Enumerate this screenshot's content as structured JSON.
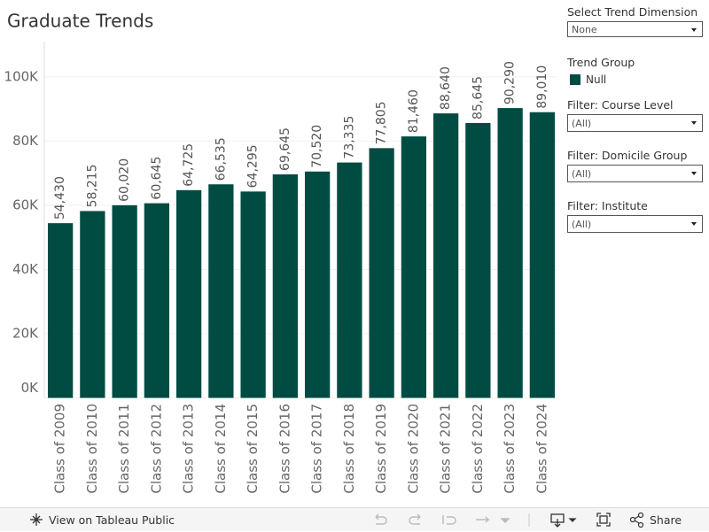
{
  "chart_data": {
    "type": "bar",
    "title": "Graduate Trends",
    "categories": [
      "Class of 2009",
      "Class of 2010",
      "Class of 2011",
      "Class of 2012",
      "Class of 2013",
      "Class of 2014",
      "Class of 2015",
      "Class of 2016",
      "Class of 2017",
      "Class of 2018",
      "Class of 2019",
      "Class of 2020",
      "Class of 2021",
      "Class of 2022",
      "Class of 2023",
      "Class of 2024"
    ],
    "legend_title": "Trend Group",
    "series": [
      {
        "name": "Null",
        "color": "#004c42",
        "values": [
          54430,
          58215,
          60020,
          60645,
          64725,
          66535,
          64295,
          69645,
          70520,
          73335,
          77805,
          81460,
          88640,
          85645,
          90290,
          89010
        ],
        "value_labels": [
          "54,430",
          "58,215",
          "60,020",
          "60,645",
          "64,725",
          "66,535",
          "64,295",
          "69,645",
          "70,520",
          "73,335",
          "77,805",
          "81,460",
          "88,640",
          "85,645",
          "90,290",
          "89,010"
        ]
      }
    ],
    "ylim": [
      0,
      111000
    ],
    "yticks": [
      {
        "value": 0,
        "label": "0K"
      },
      {
        "value": 20000,
        "label": "20K"
      },
      {
        "value": 40000,
        "label": "40K"
      },
      {
        "value": 60000,
        "label": "60K"
      },
      {
        "value": 80000,
        "label": "80K"
      },
      {
        "value": 100000,
        "label": "100K"
      }
    ],
    "grid": true
  },
  "controls": [
    {
      "label": "Select Trend Dimension",
      "value": "None"
    },
    {
      "label": "Filter: Course Level",
      "value": "(All)"
    },
    {
      "label": "Filter: Domicile Group",
      "value": "(All)"
    },
    {
      "label": "Filter: Institute",
      "value": "(All)"
    }
  ],
  "toolbar": {
    "view_link": "View on Tableau Public",
    "share": "Share"
  }
}
